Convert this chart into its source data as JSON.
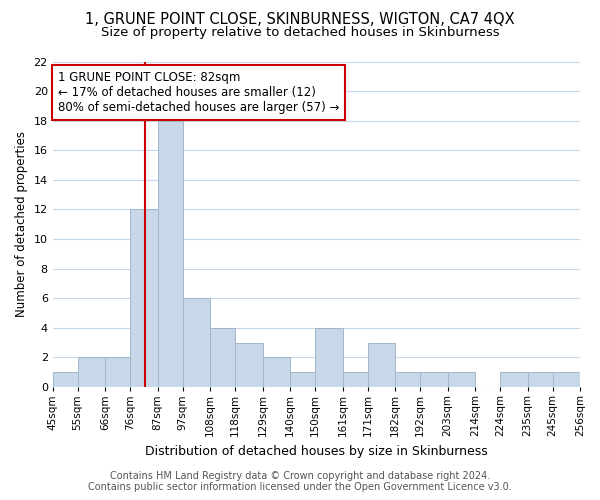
{
  "title": "1, GRUNE POINT CLOSE, SKINBURNESS, WIGTON, CA7 4QX",
  "subtitle": "Size of property relative to detached houses in Skinburness",
  "xlabel": "Distribution of detached houses by size in Skinburness",
  "ylabel": "Number of detached properties",
  "bin_edges": [
    45,
    55,
    66,
    76,
    87,
    97,
    108,
    118,
    129,
    140,
    150,
    161,
    171,
    182,
    192,
    203,
    214,
    224,
    235,
    245,
    256
  ],
  "bin_labels": [
    "45sqm",
    "55sqm",
    "66sqm",
    "76sqm",
    "87sqm",
    "97sqm",
    "108sqm",
    "118sqm",
    "129sqm",
    "140sqm",
    "150sqm",
    "161sqm",
    "171sqm",
    "182sqm",
    "192sqm",
    "203sqm",
    "214sqm",
    "224sqm",
    "235sqm",
    "245sqm",
    "256sqm"
  ],
  "counts": [
    1,
    2,
    2,
    12,
    18,
    6,
    4,
    3,
    2,
    1,
    4,
    1,
    3,
    1,
    1,
    1,
    0,
    1,
    1,
    1
  ],
  "bar_color": "#c8d8e8",
  "bar_edge_color": "#a0b8cc",
  "reference_line_x": 82,
  "reference_line_color": "#cc0000",
  "annotation_line1": "1 GRUNE POINT CLOSE: 82sqm",
  "annotation_line2": "← 17% of detached houses are smaller (12)",
  "annotation_line3": "80% of semi-detached houses are larger (57) →",
  "annotation_box_edge_color": "#cc0000",
  "annotation_box_face_color": "#ffffff",
  "ylim": [
    0,
    22
  ],
  "yticks": [
    0,
    2,
    4,
    6,
    8,
    10,
    12,
    14,
    16,
    18,
    20,
    22
  ],
  "grid_color": "#c8d8ec",
  "footer_line1": "Contains HM Land Registry data © Crown copyright and database right 2024.",
  "footer_line2": "Contains public sector information licensed under the Open Government Licence v3.0.",
  "title_fontsize": 10.5,
  "subtitle_fontsize": 9.5,
  "xlabel_fontsize": 9,
  "ylabel_fontsize": 8.5,
  "annotation_fontsize": 8.5,
  "tick_fontsize": 7.5,
  "footer_fontsize": 7
}
